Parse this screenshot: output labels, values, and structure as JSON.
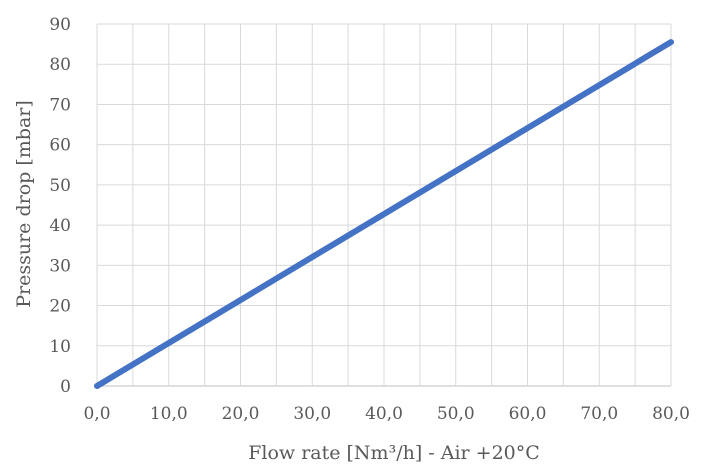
{
  "chart_data": {
    "type": "line",
    "xlabel": "Flow rate [Nm³/h]  - Air +20°C",
    "ylabel": "Pressure drop [mbar]",
    "xlim": [
      0,
      80
    ],
    "ylim": [
      0,
      90
    ],
    "x_ticks": [
      "0,0",
      "10,0",
      "20,0",
      "30,0",
      "40,0",
      "50,0",
      "60,0",
      "70,0",
      "80,0"
    ],
    "y_ticks": [
      "0",
      "10",
      "20",
      "30",
      "40",
      "50",
      "60",
      "70",
      "80",
      "90"
    ],
    "grid": true,
    "series": [
      {
        "color": "#4472C4",
        "x": [
          0,
          80
        ],
        "y": [
          0,
          85.5
        ]
      }
    ]
  }
}
